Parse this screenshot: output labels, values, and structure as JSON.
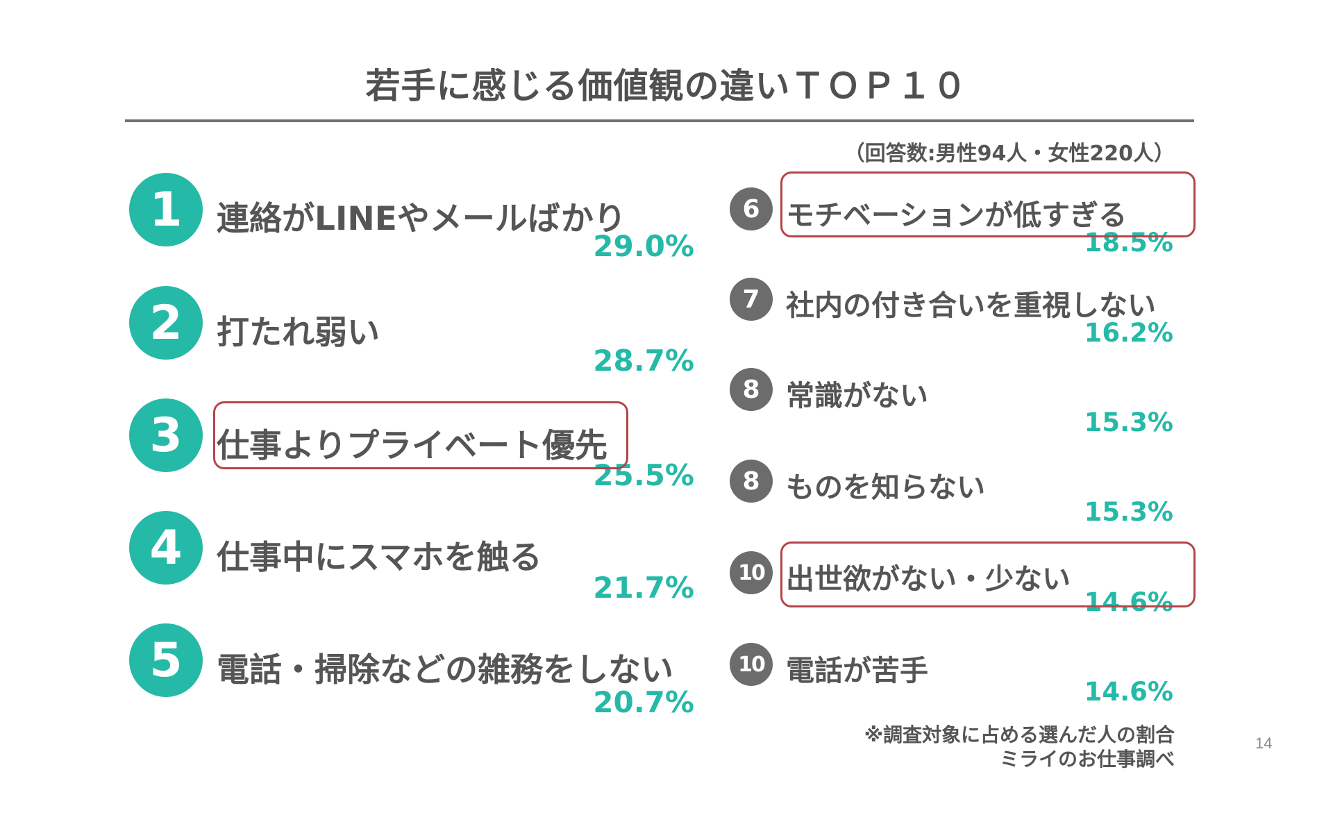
{
  "title": "若手に感じる価値観の違いＴＯＰ１０",
  "respondents_note": "（回答数:男性94人・女性220人）",
  "left_items": [
    {
      "rank": "1",
      "label": "連絡がLINEやメールばかり",
      "percent": "29.0%"
    },
    {
      "rank": "2",
      "label": "打たれ弱い",
      "percent": "28.7%"
    },
    {
      "rank": "3",
      "label": "仕事よりプライベート優先",
      "percent": "25.5%"
    },
    {
      "rank": "4",
      "label": "仕事中にスマホを触る",
      "percent": "21.7%"
    },
    {
      "rank": "5",
      "label": "電話・掃除などの雑務をしない",
      "percent": "20.7%"
    }
  ],
  "right_items": [
    {
      "rank": "6",
      "label": "モチベーションが低すぎる",
      "percent": "18.5%"
    },
    {
      "rank": "7",
      "label": "社内の付き合いを重視しない",
      "percent": "16.2%"
    },
    {
      "rank": "8",
      "label": "常識がない",
      "percent": "15.3%"
    },
    {
      "rank": "8",
      "label": "ものを知らない",
      "percent": "15.3%"
    },
    {
      "rank": "10",
      "label": "出世欲がない・少ない",
      "percent": "14.6%"
    },
    {
      "rank": "10",
      "label": "電話が苦手",
      "percent": "14.6%"
    }
  ],
  "footnote": "※調査対象に占める選んだ人の割合",
  "source": "ミライのお仕事調べ",
  "page_number": "14",
  "colors": {
    "accent_teal": "#25b9a8",
    "badge_gray": "#6c6c6c",
    "highlight_red": "#b5454a",
    "text_gray": "#555555"
  }
}
